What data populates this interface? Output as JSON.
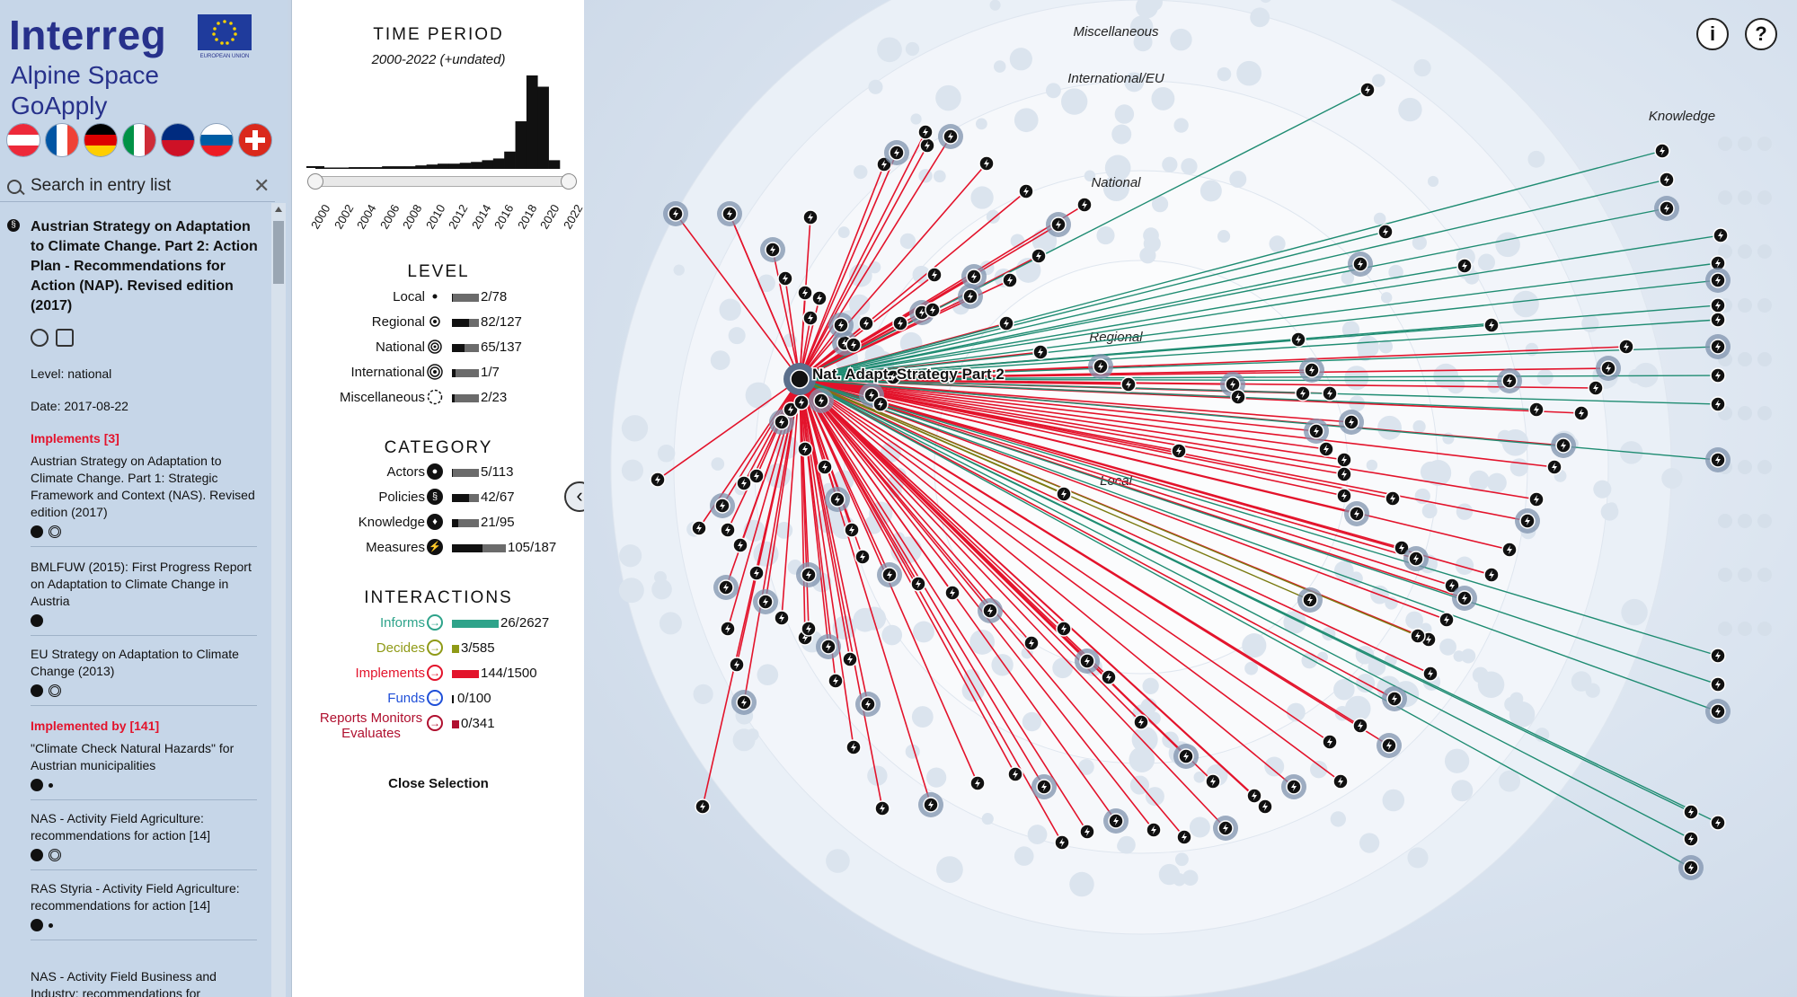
{
  "logo": {
    "line1": "Interreg",
    "line2": "Alpine Space",
    "line3": "GoApply",
    "eu_label": "EUROPEAN UNION"
  },
  "flags": [
    "austria-flag",
    "france-flag",
    "germany-flag",
    "italy-flag",
    "liechtenstein-flag",
    "slovenia-flag",
    "switzerland-flag"
  ],
  "search": {
    "placeholder": "Search in entry list",
    "clear": "✕"
  },
  "entry": {
    "title": "Austrian Strategy on Adaptation to Climate Change. Part 2: Action Plan - Recommendations for Action (NAP). Revised edition (2017)",
    "level": "Level: national",
    "date": "Date: 2017-08-22",
    "implements_head": "Implements [3]",
    "implements": [
      "Austrian Strategy on Adaptation to Climate Change. Part 1: Strategic Framework and Context (NAS). Revised edition (2017)",
      "BMLFUW (2015): First Progress Report on Adaptation to Climate Change in Austria",
      "EU Strategy on Adaptation to Climate Change (2013)"
    ],
    "implemented_by_head": "Implemented by [141]",
    "implemented_by": [
      "\"Climate Check Natural Hazards\" for Austrian municipalities",
      "NAS - Activity Field Agriculture: recommendations for action [14]",
      "RAS Styria - Activity Field Agriculture: recommendations for action [14]",
      "NAS - Activity Field Business and Industry: recommendations for"
    ]
  },
  "time_period": {
    "heading": "TIME PERIOD",
    "range": "2000-2022 (+undated)",
    "years": [
      "2000",
      "2002",
      "2004",
      "2006",
      "2008",
      "2010",
      "2012",
      "2014",
      "2016",
      "2018",
      "2020",
      "2022"
    ],
    "histogram": [
      1,
      1,
      1,
      2,
      2,
      2,
      3,
      3,
      3,
      4,
      5,
      6,
      6,
      7,
      8,
      10,
      12,
      20,
      55,
      108,
      95,
      10
    ]
  },
  "level": {
    "heading": "LEVEL",
    "rows": [
      {
        "label": "Local",
        "count": "2/78",
        "selected": 2,
        "total": 78
      },
      {
        "label": "Regional",
        "count": "82/127",
        "selected": 82,
        "total": 127
      },
      {
        "label": "National",
        "count": "65/137",
        "selected": 65,
        "total": 137
      },
      {
        "label": "International",
        "count": "1/7",
        "selected": 1,
        "total": 7
      },
      {
        "label": "Miscellaneous",
        "count": "2/23",
        "selected": 2,
        "total": 23
      }
    ]
  },
  "category": {
    "heading": "CATEGORY",
    "rows": [
      {
        "label": "Actors",
        "count": "5/113",
        "selected": 5,
        "total": 113
      },
      {
        "label": "Policies",
        "count": "42/67",
        "selected": 42,
        "total": 67
      },
      {
        "label": "Knowledge",
        "count": "21/95",
        "selected": 21,
        "total": 95
      },
      {
        "label": "Measures",
        "count": "105/187",
        "selected": 105,
        "total": 187
      }
    ]
  },
  "interactions": {
    "heading": "INTERACTIONS",
    "rows": [
      {
        "label": "Informs",
        "count": "26/2627",
        "color": "#2ea38a",
        "selected": 26,
        "total": 2627
      },
      {
        "label": "Decides",
        "count": "3/585",
        "color": "#8f9a16",
        "selected": 3,
        "total": 585
      },
      {
        "label": "Implements",
        "count": "144/1500",
        "color": "#e3132b",
        "selected": 144,
        "total": 1500
      },
      {
        "label": "Funds",
        "count": "0/100",
        "color": "#1f4fd8",
        "selected": 0,
        "total": 100
      },
      {
        "label": "Reports Monitors Evaluates",
        "count": "0/341",
        "color": "#b0102f",
        "selected": 0,
        "total": 341
      }
    ]
  },
  "close_selection": "Close Selection",
  "network": {
    "ring_labels": {
      "misc": "Miscellaneous",
      "intl": "International/EU",
      "national": "National",
      "regional": "Regional",
      "local": "Local",
      "knowledge": "Knowledge"
    },
    "focus_label": "Nat. Adapt. Strategy Part 2",
    "colors": {
      "implements": "#e3132b",
      "informs": "#1f8c72",
      "decides": "#7a7a10"
    }
  },
  "buttons": {
    "info": "i",
    "help": "?",
    "collapse": "‹"
  }
}
